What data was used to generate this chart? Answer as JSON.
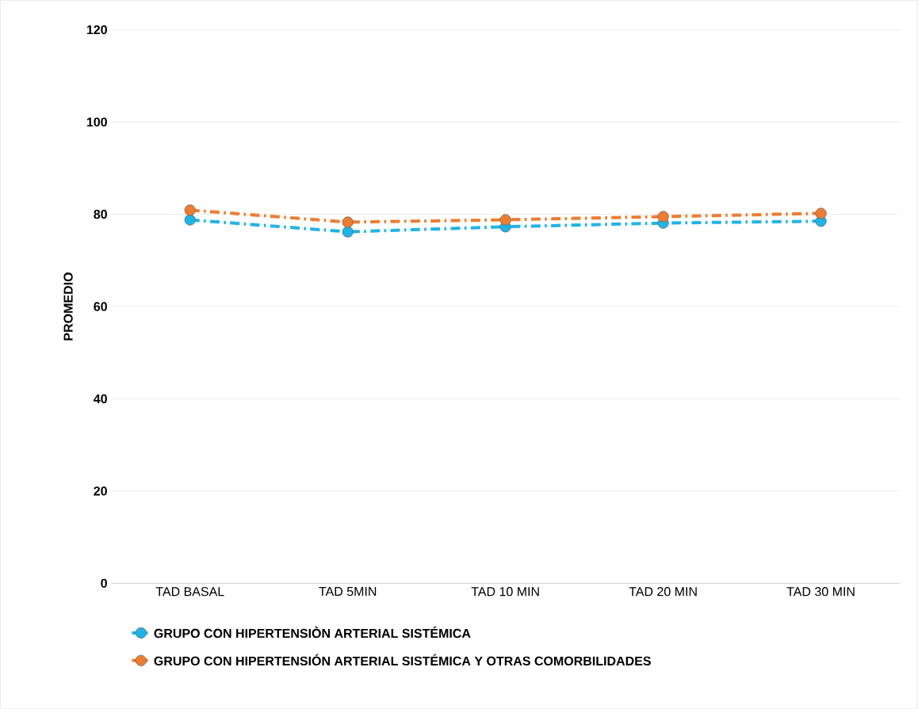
{
  "chart_data": {
    "type": "line",
    "ylabel": "PROMEDIO",
    "categories": [
      "TAD BASAL",
      "TAD 5MIN",
      "TAD 10 MIN",
      "TAD 20 MIN",
      "TAD 30 MIN"
    ],
    "series": [
      {
        "name": "GRUPO CON HIPERTENSIÒN ARTERIAL SISTÉMICA",
        "color": "#1fb4e6",
        "values": [
          78.8,
          76.2,
          77.3,
          78.1,
          78.5
        ]
      },
      {
        "name": "GRUPO CON HIPERTENSIÓN ARTERIAL SISTÉMICA Y OTRAS COMORBILIDADES",
        "color": "#ed7d31",
        "values": [
          80.9,
          78.3,
          78.8,
          79.5,
          80.2
        ]
      }
    ],
    "ylim": [
      0,
      120
    ],
    "yticks": [
      0,
      20,
      40,
      60,
      80,
      100,
      120
    ],
    "grid": "y",
    "legend": "bottom",
    "marker": "circle",
    "line_style": "dashed"
  }
}
